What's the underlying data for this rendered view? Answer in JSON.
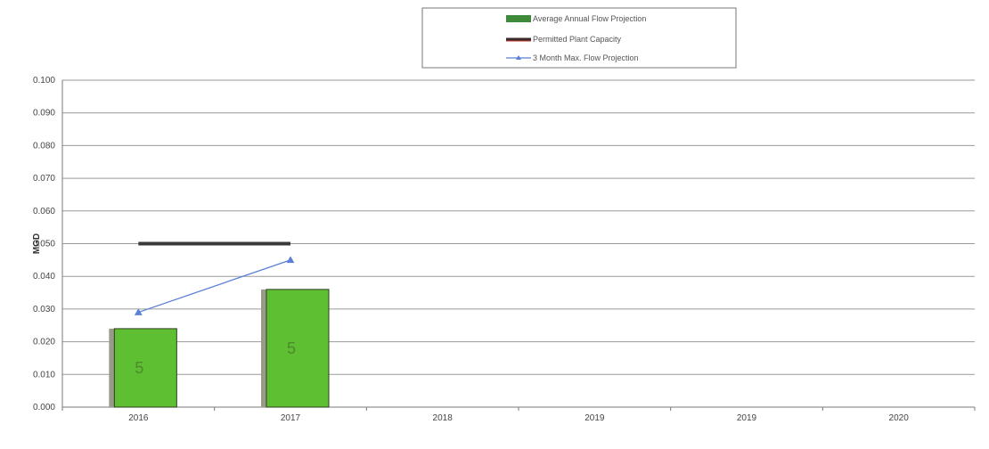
{
  "chart_data": {
    "type": "bar",
    "categories": [
      "2016",
      "2017",
      "2018",
      "2019",
      "2019",
      "2020"
    ],
    "ylabel": "MGD",
    "ylim": [
      0.0,
      0.1
    ],
    "y_ticks": [
      "0.000",
      "0.010",
      "0.020",
      "0.030",
      "0.040",
      "0.050",
      "0.060",
      "0.070",
      "0.080",
      "0.090",
      "0.100"
    ],
    "grid": true,
    "legend_position": "top-center",
    "series": [
      {
        "name": "Average Annual Flow Projection",
        "kind": "bar",
        "values": [
          0.024,
          0.036,
          null,
          null,
          null,
          null
        ],
        "color": "#5fbf32",
        "bar_labels": [
          "5",
          "5",
          "",
          "",
          "",
          ""
        ]
      },
      {
        "name": "Permitted Plant Capacity",
        "kind": "line",
        "values": [
          0.05,
          0.05,
          null,
          null,
          null,
          null
        ],
        "color": "#3a3a3a"
      },
      {
        "name": "3 Month Max. Flow Projection",
        "kind": "line-marker",
        "values": [
          0.029,
          0.045,
          null,
          null,
          null,
          null
        ],
        "color": "#5a7fd6"
      }
    ]
  }
}
